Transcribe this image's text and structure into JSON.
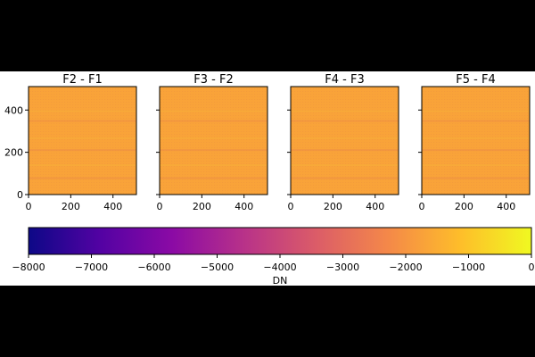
{
  "figure": {
    "background": "#ffffff",
    "letterbox": "#000000"
  },
  "chart_data": {
    "type": "heatmap",
    "panels": [
      {
        "title": "F2 - F1",
        "mean_value": -1700
      },
      {
        "title": "F3 - F2",
        "mean_value": -1700
      },
      {
        "title": "F4 - F3",
        "mean_value": -1700
      },
      {
        "title": "F5 - F4",
        "mean_value": -1700
      }
    ],
    "x_ticks": [
      "0",
      "200",
      "400"
    ],
    "y_ticks": [
      "0",
      "200",
      "400"
    ],
    "x_range": [
      0,
      511
    ],
    "y_range": [
      0,
      511
    ],
    "colorbar": {
      "label": "DN",
      "range": [
        -8000,
        0
      ],
      "ticks": [
        "−8000",
        "−7000",
        "−6000",
        "−5000",
        "−4000",
        "−3000",
        "−2000",
        "−1000",
        "0"
      ],
      "tick_values": [
        -8000,
        -7000,
        -6000,
        -5000,
        -4000,
        -3000,
        -2000,
        -1000,
        0
      ],
      "colormap": "plasma",
      "colormap_stops": [
        "#0d0887",
        "#5302a3",
        "#8b0aa5",
        "#b83289",
        "#db5c68",
        "#f48849",
        "#febd2a",
        "#f0f921"
      ]
    }
  }
}
